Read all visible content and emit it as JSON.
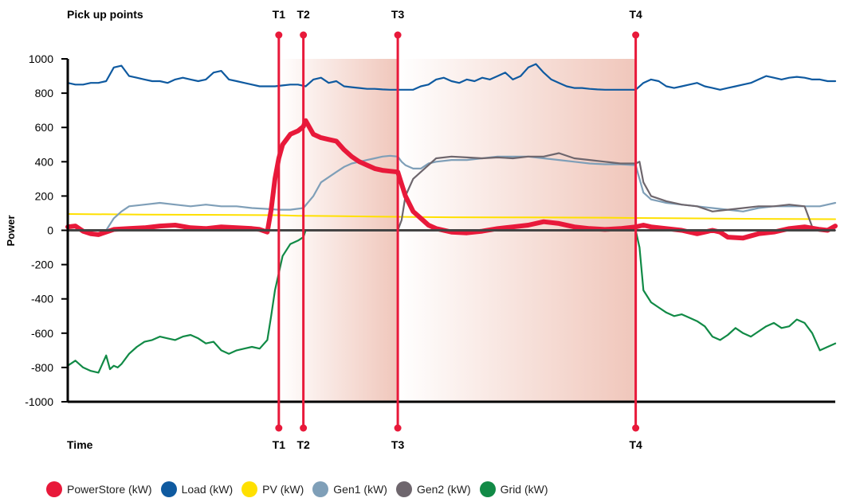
{
  "chart_data": {
    "type": "line",
    "ylabel": "Power",
    "xlabel": "Time",
    "top_label": "Pick up points",
    "ylim": [
      -1000,
      1000
    ],
    "yticks": [
      1000,
      800,
      600,
      400,
      200,
      0,
      -200,
      -400,
      -600,
      -800,
      -1000
    ],
    "xlim": [
      0,
      100
    ],
    "markers": [
      {
        "label": "T1",
        "x": 27.5
      },
      {
        "label": "T2",
        "x": 30.7
      },
      {
        "label": "T3",
        "x": 43.0
      },
      {
        "label": "T4",
        "x": 74.0
      }
    ],
    "shaded_regions": [
      {
        "from": 27.5,
        "to": 43.0,
        "fade": "left"
      },
      {
        "from": 43.0,
        "to": 74.0,
        "fade": "left"
      }
    ],
    "series": [
      {
        "name": "PowerStore (kW)",
        "color": "#e8193a",
        "x": [
          0,
          1,
          2,
          3,
          4,
          5,
          6,
          8,
          10,
          12,
          14,
          16,
          18,
          20,
          22,
          24,
          25,
          26,
          26.5,
          27,
          27.5,
          28,
          29,
          30,
          30.7,
          31,
          32,
          33,
          34,
          35,
          36,
          37,
          38,
          39,
          40,
          41,
          42,
          43,
          44,
          45,
          46,
          47,
          48,
          50,
          52,
          54,
          56,
          58,
          60,
          62,
          64,
          66,
          68,
          70,
          72,
          74,
          75,
          76,
          78,
          80,
          82,
          84,
          85,
          86,
          88,
          90,
          92,
          94,
          96,
          98,
          99,
          100
        ],
        "y": [
          20,
          25,
          -5,
          -20,
          -25,
          -10,
          5,
          10,
          15,
          25,
          30,
          15,
          10,
          20,
          15,
          10,
          5,
          -10,
          120,
          300,
          420,
          500,
          560,
          580,
          605,
          640,
          560,
          540,
          530,
          520,
          470,
          430,
          400,
          380,
          360,
          350,
          345,
          340,
          200,
          110,
          70,
          30,
          10,
          -10,
          -15,
          -5,
          10,
          20,
          30,
          50,
          40,
          20,
          10,
          5,
          10,
          20,
          30,
          20,
          10,
          0,
          -20,
          0,
          -10,
          -40,
          -45,
          -20,
          -10,
          10,
          20,
          5,
          0,
          25
        ]
      },
      {
        "name": "Load (kW)",
        "color": "#0f5aa0",
        "x": [
          0,
          1,
          2,
          3,
          4,
          5,
          6,
          7,
          8,
          9,
          10,
          11,
          12,
          13,
          14,
          15,
          16,
          17,
          18,
          19,
          20,
          21,
          22,
          23,
          24,
          25,
          26,
          27,
          28,
          29,
          30,
          31,
          32,
          33,
          34,
          35,
          36,
          37,
          38,
          39,
          40,
          41,
          42,
          43,
          44,
          45,
          46,
          47,
          48,
          49,
          50,
          51,
          52,
          53,
          54,
          55,
          56,
          57,
          58,
          59,
          60,
          61,
          62,
          63,
          64,
          65,
          66,
          67,
          68,
          69,
          70,
          71,
          72,
          73,
          74,
          75,
          76,
          77,
          78,
          79,
          80,
          81,
          82,
          83,
          84,
          85,
          86,
          87,
          88,
          89,
          90,
          91,
          92,
          93,
          94,
          95,
          96,
          97,
          98,
          99,
          100
        ],
        "y": [
          860,
          850,
          850,
          860,
          860,
          870,
          950,
          960,
          900,
          890,
          880,
          870,
          870,
          860,
          880,
          890,
          880,
          870,
          880,
          920,
          930,
          880,
          870,
          860,
          850,
          840,
          840,
          840,
          845,
          850,
          850,
          840,
          880,
          890,
          860,
          870,
          840,
          835,
          830,
          825,
          825,
          822,
          820,
          820,
          820,
          820,
          840,
          850,
          880,
          890,
          870,
          860,
          880,
          870,
          890,
          880,
          900,
          920,
          880,
          900,
          950,
          970,
          920,
          880,
          860,
          840,
          830,
          830,
          825,
          822,
          820,
          820,
          820,
          820,
          820,
          860,
          880,
          870,
          840,
          830,
          840,
          850,
          860,
          840,
          830,
          820,
          830,
          840,
          850,
          860,
          880,
          900,
          890,
          880,
          890,
          895,
          890,
          880,
          880,
          870,
          870
        ]
      },
      {
        "name": "PV (kW)",
        "color": "#ffe000",
        "x": [
          0,
          10,
          20,
          27.5,
          30,
          35,
          40,
          45,
          50,
          60,
          70,
          74,
          80,
          90,
          100
        ],
        "y": [
          95,
          92,
          90,
          88,
          85,
          83,
          80,
          78,
          76,
          75,
          74,
          72,
          70,
          67,
          65
        ]
      },
      {
        "name": "Gen1 (kW)",
        "color": "#7f9fb8",
        "x": [
          0,
          1,
          2,
          3,
          4,
          5,
          6,
          7,
          8,
          10,
          12,
          14,
          16,
          18,
          20,
          22,
          24,
          26,
          27.5,
          29,
          30.7,
          32,
          33,
          34,
          35,
          36,
          37,
          38,
          39,
          40,
          41,
          42,
          43,
          43.5,
          44,
          45,
          46,
          47,
          48,
          50,
          52,
          54,
          56,
          58,
          60,
          62,
          64,
          66,
          68,
          70,
          72,
          74,
          74.5,
          75,
          76,
          78,
          80,
          82,
          84,
          86,
          88,
          90,
          92,
          94,
          96,
          98,
          100
        ],
        "y": [
          0,
          0,
          0,
          0,
          0,
          0,
          70,
          110,
          140,
          150,
          160,
          150,
          140,
          150,
          140,
          140,
          130,
          125,
          120,
          120,
          130,
          200,
          280,
          310,
          340,
          370,
          390,
          400,
          410,
          420,
          430,
          435,
          430,
          400,
          380,
          360,
          360,
          390,
          400,
          410,
          410,
          420,
          430,
          430,
          430,
          420,
          410,
          400,
          390,
          385,
          385,
          380,
          300,
          220,
          180,
          160,
          150,
          140,
          130,
          120,
          110,
          130,
          140,
          140,
          140,
          140,
          160
        ]
      },
      {
        "name": "Gen2 (kW)",
        "color": "#6e666d",
        "x": [
          0,
          10,
          20,
          27.5,
          30,
          35,
          40,
          42,
          43,
          43.5,
          44,
          45,
          46,
          47,
          48,
          50,
          52,
          54,
          56,
          58,
          60,
          62,
          64,
          66,
          68,
          70,
          72,
          74,
          74.5,
          75,
          76,
          78,
          80,
          82,
          84,
          86,
          88,
          90,
          92,
          94,
          96,
          97,
          98,
          100
        ],
        "y": [
          0,
          0,
          0,
          0,
          0,
          0,
          0,
          0,
          0,
          60,
          200,
          300,
          340,
          380,
          420,
          430,
          425,
          420,
          425,
          420,
          430,
          430,
          450,
          420,
          410,
          400,
          390,
          390,
          400,
          280,
          200,
          170,
          150,
          140,
          110,
          120,
          130,
          140,
          140,
          150,
          140,
          20,
          0,
          0
        ]
      },
      {
        "name": "Grid (kW)",
        "color": "#118a46",
        "x": [
          0,
          1,
          2,
          3,
          4,
          5,
          5.5,
          6,
          6.5,
          7,
          8,
          9,
          10,
          11,
          12,
          13,
          14,
          15,
          16,
          17,
          18,
          19,
          20,
          21,
          22,
          23,
          24,
          25,
          26,
          26.5,
          27,
          27.5,
          28,
          29,
          30,
          30.7,
          31,
          35,
          40,
          43,
          50,
          60,
          70,
          74,
          74.5,
          75,
          76,
          77,
          78,
          79,
          80,
          81,
          82,
          83,
          84,
          85,
          86,
          87,
          88,
          89,
          90,
          91,
          92,
          93,
          94,
          95,
          96,
          97,
          98,
          99,
          100
        ],
        "y": [
          -790,
          -760,
          -800,
          -820,
          -830,
          -730,
          -810,
          -790,
          -800,
          -780,
          -720,
          -680,
          -650,
          -640,
          -620,
          -630,
          -640,
          -620,
          -610,
          -630,
          -660,
          -650,
          -700,
          -720,
          -700,
          -690,
          -680,
          -690,
          -640,
          -500,
          -350,
          -250,
          -150,
          -80,
          -60,
          -40,
          0,
          0,
          0,
          0,
          0,
          0,
          0,
          0,
          -100,
          -350,
          -420,
          -450,
          -480,
          -500,
          -490,
          -510,
          -530,
          -560,
          -620,
          -640,
          -610,
          -570,
          -600,
          -620,
          -590,
          -560,
          -540,
          -570,
          -560,
          -520,
          -540,
          -600,
          -700,
          -680,
          -660
        ]
      }
    ]
  }
}
